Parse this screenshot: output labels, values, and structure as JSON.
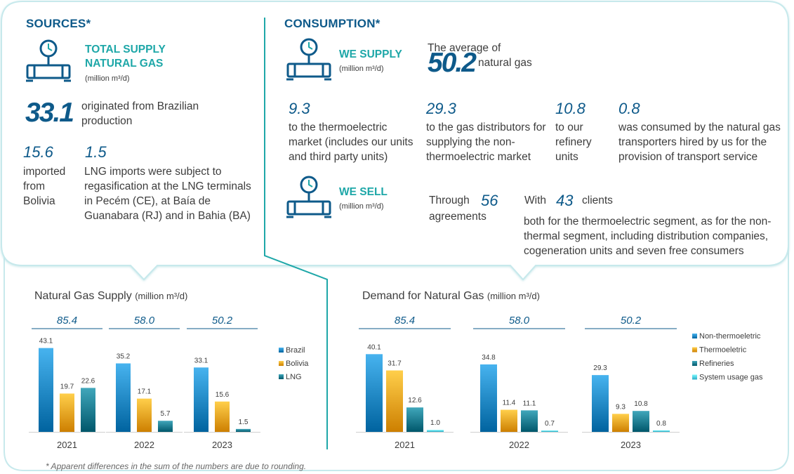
{
  "colors": {
    "brand_blue": "#0e5a8a",
    "teal": "#1ea7a8",
    "brazil": "#1a86c2",
    "bolivia": "#f0a21e",
    "lng": "#137a8e",
    "non_thermo": "#1a86c2",
    "thermo": "#f0a21e",
    "refineries": "#137a8e",
    "system_gas": "#4fcde8"
  },
  "sources": {
    "heading": "SOURCES*",
    "title_line1": "TOTAL SUPPLY",
    "title_line2": "NATURAL GAS",
    "unit": "(million m³/d)",
    "brazil_value": "33.1",
    "brazil_text_line1": "originated from Brazilian",
    "brazil_text_line2": "production",
    "bolivia_value": "15.6",
    "bolivia_text_line1": "imported",
    "bolivia_text_line2": "from",
    "bolivia_text_line3": "Bolivia",
    "lng_value": "1.5",
    "lng_text_line1": "LNG imports were subject to",
    "lng_text_line2": "regasification at the LNG terminals",
    "lng_text_line3": "in Pecém (CE), at Baía de",
    "lng_text_line4": "Guanabara (RJ) and in Bahia (BA)"
  },
  "consumption": {
    "heading": "CONSUMPTION*",
    "supply_title": "WE SUPPLY",
    "supply_unit": "(million m³/d)",
    "average_label": "The average of",
    "average_value": "50.2",
    "average_suffix": "natural gas",
    "items": [
      {
        "value": "9.3",
        "line1": "to the thermoelectric",
        "line2": "market (includes our units",
        "line3": "and third party units)"
      },
      {
        "value": "29.3",
        "line1": "to the gas distributors for",
        "line2": "supplying the non-",
        "line3": "thermoelectric market"
      },
      {
        "value": "10.8",
        "line1": "to our",
        "line2": "refinery",
        "line3": "units"
      },
      {
        "value": "0.8",
        "line1": "was consumed by the natural gas",
        "line2": "transporters hired by us for the",
        "line3": "provision of transport service"
      }
    ],
    "sell_title": "WE SELL",
    "sell_unit": "(million m³/d)",
    "through_label": "Through",
    "agreements_value": "56",
    "agreements_label": "agreements",
    "with_label": "With",
    "clients_value": "43",
    "clients_label": "clients",
    "clients_text_line1": "both for the thermoelectric segment, as for the non-",
    "clients_text_line2": "thermal segment, including distribution companies,",
    "clients_text_line3": "cogeneration units and seven free consumers"
  },
  "footnote": "* Apparent differences in the sum of the numbers are due to rounding.",
  "chart_data": [
    {
      "type": "bar",
      "title": "Natural Gas Supply",
      "title_unit": "(million m³/d)",
      "categories": [
        "2021",
        "2022",
        "2023"
      ],
      "totals": [
        "85.4",
        "58.0",
        "50.2"
      ],
      "series": [
        {
          "name": "Brazil",
          "values": [
            43.1,
            35.2,
            33.1
          ]
        },
        {
          "name": "Bolivia",
          "values": [
            19.7,
            17.1,
            15.6
          ]
        },
        {
          "name": "LNG",
          "values": [
            22.6,
            5.7,
            1.5
          ]
        }
      ],
      "ylim": [
        0,
        45
      ],
      "legend": "right"
    },
    {
      "type": "bar",
      "title": "Demand for Natural Gas",
      "title_unit": "(million m³/d)",
      "categories": [
        "2021",
        "2022",
        "2023"
      ],
      "totals": [
        "85.4",
        "58.0",
        "50.2"
      ],
      "series": [
        {
          "name": "Non-thermoeletric",
          "values": [
            40.1,
            34.8,
            29.3
          ]
        },
        {
          "name": "Thermoeletric",
          "values": [
            31.7,
            11.4,
            9.3
          ]
        },
        {
          "name": "Refineries",
          "values": [
            12.6,
            11.1,
            10.8
          ]
        },
        {
          "name": "System usage gas",
          "values": [
            1.0,
            0.7,
            0.8
          ]
        }
      ],
      "ylim": [
        0,
        42
      ],
      "legend": "right"
    }
  ]
}
